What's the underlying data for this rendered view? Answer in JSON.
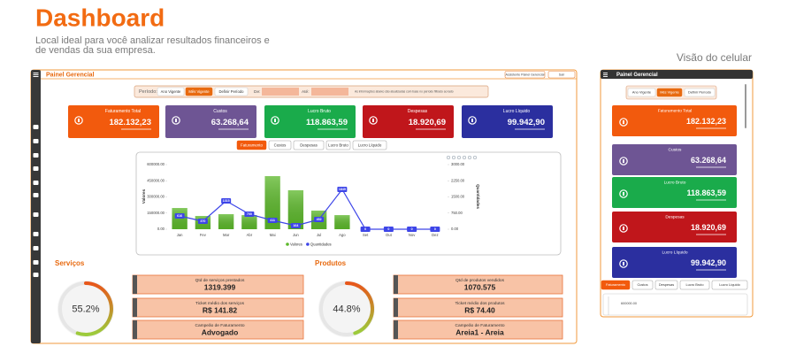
{
  "header": {
    "title": "Dashboard",
    "subtitle": [
      "Local ideal para você analizar resultados financeiros e",
      "de vendas da sua empresa."
    ]
  },
  "desktop": {
    "title": "Painel Gerencial",
    "top_buttons": [
      "Assistente Painel Gerencial",
      "Sair"
    ],
    "period": {
      "label": "Período:",
      "options": [
        "Ano Vigente",
        "Mês Vigente",
        "Definir Período"
      ],
      "active": 1,
      "from": "De:",
      "to": "Até:",
      "note": "As informações abaixo são atualizadas com base no período filtrado ao lado"
    }
  },
  "kpis": [
    {
      "label": "Faturamento Total",
      "value": "182.132,23",
      "color": "#f25a0d"
    },
    {
      "label": "Custos",
      "value": "63.268,64",
      "color": "#6e5594"
    },
    {
      "label": "Lucro Bruto",
      "value": "118.863,59",
      "color": "#1aab4b"
    },
    {
      "label": "Despesas",
      "value": "18.920,69",
      "color": "#c0161b"
    },
    {
      "label": "Lucro Líquido",
      "value": "99.942,90",
      "color": "#2b2f9f"
    }
  ],
  "tabs": {
    "items": [
      "Faturamento",
      "Custos",
      "Despesas",
      "Lucro Bruto",
      "Lucro Líquido"
    ],
    "active": 0
  },
  "chart_data": {
    "type": "bar",
    "categories": [
      "Jan",
      "Fev",
      "Mar",
      "Abr",
      "Mai",
      "Jun",
      "Jul",
      "Ago",
      "Set",
      "Out",
      "Nov",
      "Dez"
    ],
    "series": [
      {
        "name": "Valores",
        "color": "#5cb82a",
        "type": "bar",
        "values": [
          197000,
          123000,
          140000,
          131000,
          493000,
          362000,
          173000,
          131000,
          0,
          0,
          0,
          0
        ]
      },
      {
        "name": "Quantidades",
        "color": "#3d45e8",
        "type": "line",
        "axis": "y2",
        "values": [
          616,
          370,
          1315,
          700,
          411,
          164,
          452,
          1849,
          0,
          0,
          0,
          0
        ]
      }
    ],
    "ylabel": "Valores",
    "y2label": "Quantidades",
    "ylim": [
      0,
      600000
    ],
    "yticks": [
      {
        "value": 0,
        "label": "0.00"
      },
      {
        "value": 150000,
        "label": "150000.00"
      },
      {
        "value": 300000,
        "label": "300000.00"
      },
      {
        "value": 450000,
        "label": "450000.00"
      },
      {
        "value": 600000,
        "label": "600000.00"
      }
    ],
    "y2lim": [
      0,
      3000
    ],
    "y2ticks": [
      {
        "value": 0,
        "label": "0.00"
      },
      {
        "value": 750,
        "label": "750.00"
      },
      {
        "value": 1500,
        "label": "1500.00"
      },
      {
        "value": 2250,
        "label": "2250.00"
      },
      {
        "value": 3000,
        "label": "3000.00"
      }
    ]
  },
  "sections": [
    {
      "title": "Serviços",
      "gauge": {
        "value": 55.2,
        "label": "55.2%"
      },
      "stats": [
        {
          "label": "Qtd de serviços prestados",
          "value": "1319.399"
        },
        {
          "label": "Ticket médio dos serviços",
          "value": "R$ 141.82"
        },
        {
          "label": "Campeão de Faturamento",
          "value": "Advogado"
        }
      ]
    },
    {
      "title": "Produtos",
      "gauge": {
        "value": 44.8,
        "label": "44.8%"
      },
      "stats": [
        {
          "label": "Qtd de produtos vendidos",
          "value": "1070.575"
        },
        {
          "label": "Ticket médio dos produtos",
          "value": "R$ 74.40"
        },
        {
          "label": "Campeão de Faturamento",
          "value": "Areia1 - Areia"
        }
      ]
    }
  ],
  "mobile": {
    "caption": "Visão do celular",
    "title": "Painel Gerencial"
  }
}
